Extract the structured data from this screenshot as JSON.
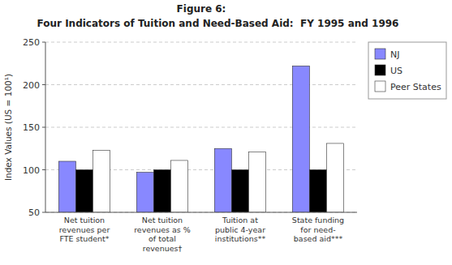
{
  "chart_data": {
    "type": "bar",
    "title": "Figure 6:",
    "subtitle": "Four Indicators of Tuition and Need-Based Aid:  FY 1995 and 1996",
    "y_label": "Index Values (US = 100¹)",
    "categories": [
      "Net tuition\nrevenues per\nFTE student*",
      "Net tuition\nrevenues as %\nof total\nrevenues†",
      "Tuition at\npublic 4-year\ninstitutions**",
      "State funding\nfor need-\nbased aid***"
    ],
    "series": [
      {
        "name": "NJ",
        "color": "#8888ff",
        "values": [
          110,
          97,
          125,
          222
        ]
      },
      {
        "name": "US",
        "color": "#000000",
        "values": [
          100,
          100,
          100,
          100
        ]
      },
      {
        "name": "Peer States",
        "color": "#ffffff",
        "values": [
          123,
          111,
          121,
          131
        ]
      }
    ],
    "ylim": [
      50,
      250
    ],
    "yticks": [
      50,
      100,
      150,
      200,
      250
    ],
    "grid": true,
    "legend": "right"
  }
}
